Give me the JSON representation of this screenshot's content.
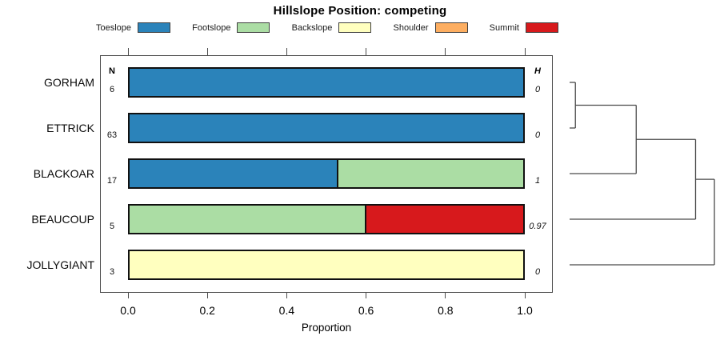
{
  "chart_data": {
    "type": "bar",
    "variant": "horizontal-stacked-proportion",
    "title": "Hillslope Position: competing",
    "xlabel": "Proportion",
    "xlim": [
      0,
      1
    ],
    "xticks": [
      0.0,
      0.2,
      0.4,
      0.6,
      0.8,
      1.0
    ],
    "xtick_labels": [
      "0.0",
      "0.2",
      "0.4",
      "0.6",
      "0.8",
      "1.0"
    ],
    "grid": false,
    "legend_position": "top",
    "n_header": "N",
    "h_header": "H",
    "categories": [
      "GORHAM",
      "ETTRICK",
      "BLACKOAR",
      "BEAUCOUP",
      "JOLLYGIANT"
    ],
    "rows": [
      {
        "label": "GORHAM",
        "n": "6",
        "h": "0",
        "segments": [
          {
            "name": "Toeslope",
            "value": 1.0
          }
        ]
      },
      {
        "label": "ETTRICK",
        "n": "63",
        "h": "0",
        "segments": [
          {
            "name": "Toeslope",
            "value": 1.0
          }
        ]
      },
      {
        "label": "BLACKOAR",
        "n": "17",
        "h": "1",
        "segments": [
          {
            "name": "Toeslope",
            "value": 0.53
          },
          {
            "name": "Footslope",
            "value": 0.47
          }
        ]
      },
      {
        "label": "BEAUCOUP",
        "n": "5",
        "h": "0.97",
        "segments": [
          {
            "name": "Footslope",
            "value": 0.6
          },
          {
            "name": "Summit",
            "value": 0.4
          }
        ]
      },
      {
        "label": "JOLLYGIANT",
        "n": "3",
        "h": "0",
        "segments": [
          {
            "name": "Backslope",
            "value": 1.0
          }
        ]
      }
    ],
    "dendrogram": {
      "leaf_order": [
        "GORHAM",
        "ETTRICK",
        "BLACKOAR",
        "BEAUCOUP",
        "JOLLYGIANT"
      ],
      "merges": [
        {
          "join": [
            "GORHAM",
            "ETTRICK"
          ],
          "height": 0.04
        },
        {
          "join": [
            "cluster-1",
            "BLACKOAR"
          ],
          "height": 0.46
        },
        {
          "join": [
            "cluster-2",
            "BEAUCOUP"
          ],
          "height": 0.87
        },
        {
          "join": [
            "cluster-3",
            "JOLLYGIANT"
          ],
          "height": 1.0
        }
      ]
    }
  },
  "legend": [
    {
      "label": "Toeslope",
      "color": "#2B83BA"
    },
    {
      "label": "Footslope",
      "color": "#ABDDA4"
    },
    {
      "label": "Backslope",
      "color": "#FFFFBF"
    },
    {
      "label": "Shoulder",
      "color": "#FDAE61"
    },
    {
      "label": "Summit",
      "color": "#D7191C"
    }
  ],
  "colors": {
    "bar_border": "#111111",
    "box_border": "#4d4d4d",
    "dendrogram_line": "#4a4a4a",
    "text": "#000000"
  }
}
